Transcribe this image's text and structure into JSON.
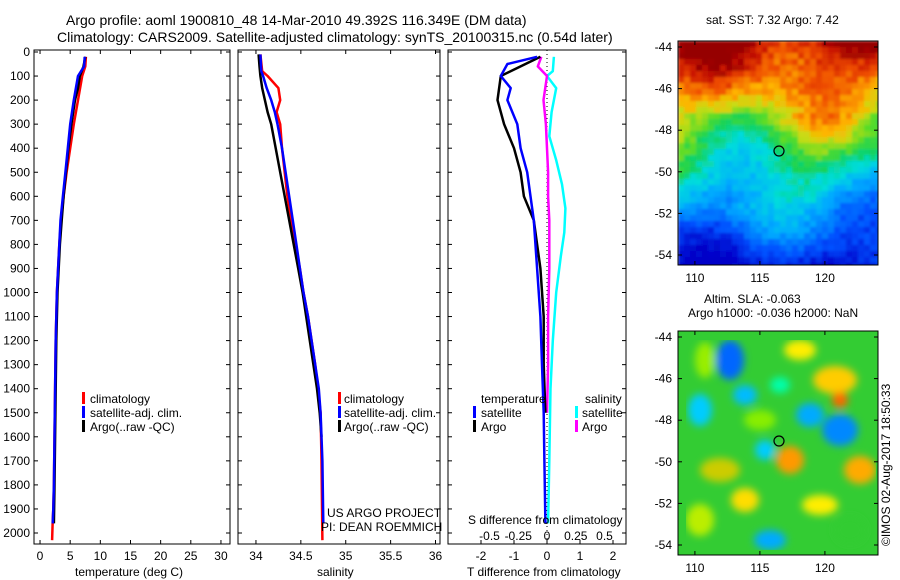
{
  "titles": {
    "line1": "Argo profile: aoml 1900810_48 14-Mar-2010 49.392S 116.349E (DM data)",
    "line2": "Climatology: CARS2009. Satellite-adjusted climatology: synTS_20100315.nc (0.54d later)"
  },
  "depth_axis": {
    "ticks": [
      0,
      100,
      200,
      300,
      400,
      500,
      600,
      700,
      800,
      900,
      1000,
      1100,
      1200,
      1300,
      1400,
      1500,
      1600,
      1700,
      1800,
      1900,
      2000
    ],
    "ylim": [
      0,
      2060
    ]
  },
  "panels": {
    "temperature": {
      "xlabel": "temperature (deg C)",
      "xticks": [
        "0",
        "5",
        "10",
        "15",
        "20",
        "25",
        "30"
      ],
      "xlim": [
        -1,
        31.5
      ],
      "legend": [
        "climatology",
        "satellite-adj. clim.",
        "Argo(..raw -QC)"
      ]
    },
    "salinity": {
      "xlabel": "salinity",
      "xticks": [
        "34",
        "34.5",
        "35",
        "35.5",
        "36"
      ],
      "xlim": [
        33.8,
        36.05
      ],
      "legend": [
        "climatology",
        "satellite-adj. clim.",
        "Argo(..raw -QC)"
      ],
      "credit1": "US ARGO PROJECT",
      "credit2": "PI: DEAN ROEMMICH"
    },
    "difference": {
      "xlabel": "T difference from climatology",
      "top_label": "S difference from climatology",
      "t_ticks": [
        "-2",
        "-1",
        "0",
        "1",
        "2"
      ],
      "s_ticks": [
        "-0.5",
        "-0.25",
        "0",
        "0.25",
        "0.5"
      ],
      "legend_t_title": "temperature",
      "legend_s_title": "salinity",
      "legend_t": [
        "satellite",
        "Argo"
      ],
      "legend_s": [
        "satellite",
        "Argo"
      ]
    }
  },
  "maps": {
    "sst_title": "sat. SST: 7.32 Argo: 7.42",
    "sla_title1": "Altim. SLA: -0.063",
    "sla_title2": "Argo h1000: -0.036 h2000: NaN",
    "lat_ticks": [
      "-44",
      "-46",
      "-48",
      "-50",
      "-52",
      "-54"
    ],
    "lon_ticks": [
      "110",
      "115",
      "120"
    ],
    "stamp": "©IMOS 02-Aug-2017 18:50:33"
  },
  "colors": {
    "climatology": "#ff0000",
    "satellite": "#0000ff",
    "argo": "#000000",
    "s_satellite": "#00ffff",
    "s_argo": "#ff00ff"
  },
  "chart_data": [
    {
      "type": "line",
      "title": "",
      "xlabel": "temperature (deg C)",
      "ylabel": "",
      "y_reversed": true,
      "series": [
        {
          "name": "climatology",
          "x": [
            7.6,
            7.5,
            7.0,
            6.3,
            5.6,
            5.0,
            4.4,
            3.9,
            3.5,
            3.2,
            3.0,
            2.8,
            2.7,
            2.6,
            2.5,
            2.4,
            2.3,
            2.2,
            2.1,
            2.0
          ],
          "y": [
            20,
            60,
            100,
            200,
            300,
            400,
            500,
            600,
            700,
            800,
            900,
            1000,
            1100,
            1200,
            1400,
            1600,
            1800,
            1900,
            1950,
            2030
          ]
        },
        {
          "name": "satellite-adj. clim.",
          "x": [
            7.4,
            7.3,
            6.3,
            5.6,
            5.0,
            4.6,
            4.2,
            3.8,
            3.4,
            3.2,
            3.0,
            2.8,
            2.7,
            2.6,
            2.5,
            2.4,
            2.3,
            2.2,
            2.1
          ],
          "y": [
            20,
            60,
            100,
            200,
            300,
            400,
            500,
            600,
            700,
            800,
            900,
            1000,
            1100,
            1200,
            1400,
            1600,
            1800,
            1900,
            1960
          ]
        },
        {
          "name": "Argo(..raw -QC)",
          "x": [
            7.5,
            7.2,
            6.6,
            6.3,
            5.8,
            5.5,
            5.2,
            4.7,
            4.3,
            3.9,
            3.6,
            3.3,
            3.1,
            2.9,
            2.8,
            2.7,
            2.6,
            2.5,
            2.4,
            2.3
          ],
          "y": [
            20,
            60,
            100,
            150,
            200,
            250,
            300,
            400,
            500,
            600,
            700,
            800,
            900,
            1000,
            1100,
            1200,
            1400,
            1600,
            1800,
            1960
          ]
        }
      ]
    },
    {
      "type": "line",
      "title": "",
      "xlabel": "salinity",
      "ylabel": "",
      "y_reversed": true,
      "series": [
        {
          "name": "climatology",
          "x": [
            34.05,
            34.07,
            34.13,
            34.25,
            34.27,
            34.23,
            34.27,
            34.29,
            34.32,
            34.35,
            34.39,
            34.44,
            34.49,
            34.53,
            34.58,
            34.62,
            34.66,
            34.69,
            34.72,
            34.73,
            34.74
          ],
          "y": [
            10,
            80,
            100,
            150,
            200,
            250,
            300,
            400,
            500,
            600,
            700,
            800,
            900,
            1000,
            1100,
            1200,
            1300,
            1400,
            1500,
            1700,
            2030
          ]
        },
        {
          "name": "satellite-adj. clim.",
          "x": [
            34.05,
            34.06,
            34.08,
            34.12,
            34.17,
            34.21,
            34.24,
            34.29,
            34.33,
            34.37,
            34.41,
            34.45,
            34.49,
            34.53,
            34.58,
            34.62,
            34.66,
            34.7,
            34.72,
            34.74,
            34.75
          ],
          "y": [
            10,
            80,
            100,
            150,
            200,
            250,
            300,
            400,
            500,
            600,
            700,
            800,
            900,
            1000,
            1100,
            1200,
            1300,
            1400,
            1500,
            1700,
            1960
          ]
        },
        {
          "name": "Argo(..raw -QC)",
          "x": [
            34.03,
            34.04,
            34.05,
            34.07,
            34.1,
            34.13,
            34.17,
            34.22,
            34.27,
            34.32,
            34.37,
            34.42,
            34.47,
            34.52,
            34.56,
            34.6,
            34.64,
            34.68,
            34.71,
            34.73
          ],
          "y": [
            10,
            60,
            100,
            150,
            200,
            250,
            300,
            400,
            500,
            600,
            700,
            800,
            900,
            1000,
            1100,
            1200,
            1300,
            1400,
            1500,
            1600
          ]
        }
      ]
    },
    {
      "type": "line",
      "title": "",
      "xlabel": "T difference from climatology",
      "ylabel": "",
      "y_reversed": true,
      "series": [
        {
          "name": "temperature satellite",
          "x": [
            -0.3,
            -1.2,
            -1.4,
            -1.1,
            -1.2,
            -0.9,
            -0.8,
            -0.6,
            -0.5,
            -0.4,
            -0.3,
            -0.2,
            -0.15,
            -0.1,
            -0.08,
            -0.05
          ],
          "y": [
            20,
            50,
            100,
            150,
            200,
            300,
            400,
            500,
            600,
            700,
            900,
            1100,
            1300,
            1500,
            1700,
            1960
          ]
        },
        {
          "name": "temperature Argo",
          "x": [
            -0.2,
            -0.8,
            -1.4,
            -1.5,
            -1.3,
            -1.0,
            -0.8,
            -0.7,
            -0.4,
            -0.3,
            -0.2,
            -0.1,
            -0.1,
            -0.05
          ],
          "y": [
            20,
            60,
            100,
            200,
            300,
            400,
            500,
            600,
            700,
            800,
            900,
            1100,
            1300,
            1500
          ]
        },
        {
          "name": "salinity satellite",
          "x": [
            0.06,
            0.05,
            0.0,
            0.08,
            0.04,
            0.02,
            0.08,
            0.13,
            0.16,
            0.15,
            0.12,
            0.08,
            0.05,
            0.03,
            0.02,
            0.01
          ],
          "y": [
            20,
            80,
            100,
            150,
            250,
            350,
            450,
            550,
            650,
            750,
            850,
            1000,
            1200,
            1400,
            1700,
            1960
          ]
        },
        {
          "name": "salinity Argo",
          "x": [
            -0.05,
            -0.08,
            0.0,
            -0.03,
            -0.01,
            0.0,
            0.01,
            0.01,
            0.02,
            0.02,
            0.02,
            0.01,
            0.01,
            0.0
          ],
          "y": [
            20,
            60,
            100,
            200,
            300,
            400,
            500,
            600,
            700,
            800,
            900,
            1100,
            1300,
            1500
          ]
        }
      ]
    },
    {
      "type": "heatmap",
      "title": "sat. SST: 7.32 Argo: 7.42",
      "xlim": [
        108.7,
        124.1
      ],
      "ylim": [
        -55.5,
        -43.5
      ],
      "marker": {
        "lon": 116.35,
        "lat": -49.39
      }
    },
    {
      "type": "heatmap",
      "title": "Altim. SLA: -0.063",
      "xlim": [
        108.7,
        124.1
      ],
      "ylim": [
        -55.5,
        -43.5
      ],
      "marker": {
        "lon": 116.35,
        "lat": -49.39
      }
    }
  ]
}
